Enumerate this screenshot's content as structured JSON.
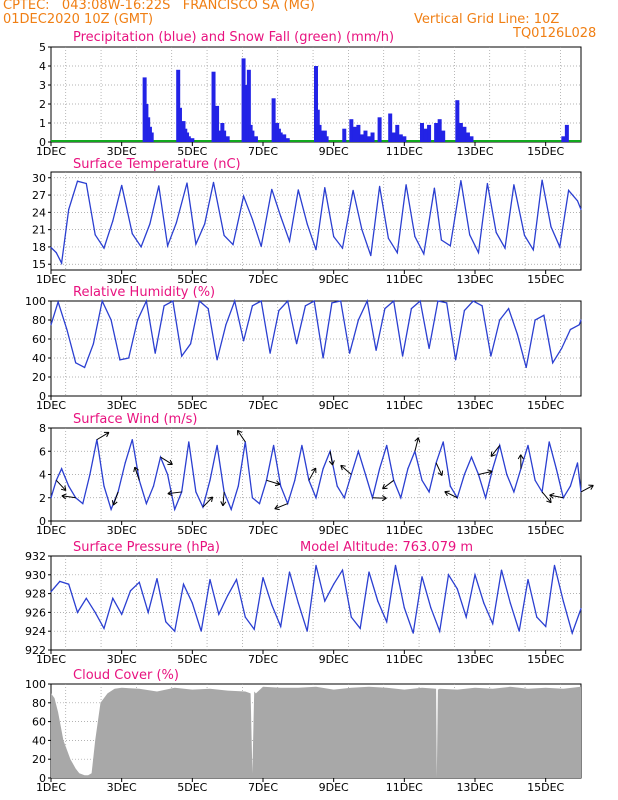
{
  "header": {
    "line1": "CPTEC:   043:08W-16:22S   FRANCISCO SA (MG)",
    "line2": "01DEC2020 10Z (GMT)",
    "grid_note": "Vertical Grid Line: 10Z",
    "code": "TQ0126L028"
  },
  "colors": {
    "header": "#f07f14",
    "title": "#e8127f",
    "line": "#2b3fd1",
    "precip": "#2323e6",
    "snow": "#12a81e",
    "cloud": "#a8a8a8",
    "grid": "#9a9a9a"
  },
  "x_ticks": [
    "1DEC",
    "3DEC",
    "5DEC",
    "7DEC",
    "9DEC",
    "11DEC",
    "13DEC",
    "15DEC"
  ],
  "x_tick_days": [
    1,
    3,
    5,
    7,
    9,
    11,
    13,
    15
  ],
  "chart_data": [
    {
      "type": "bar",
      "title": "Precipitation (blue) and Snow Fall (green) (mm/h)",
      "ylim": [
        0,
        5
      ],
      "yticks": [
        0,
        1,
        2,
        3,
        4,
        5
      ],
      "series": [
        {
          "name": "Precipitation",
          "x": [
            3.65,
            3.7,
            3.75,
            3.8,
            3.85,
            4.6,
            4.65,
            4.7,
            4.75,
            4.8,
            4.85,
            4.9,
            5.0,
            5.6,
            5.7,
            5.75,
            5.8,
            5.85,
            5.9,
            6.0,
            6.45,
            6.5,
            6.55,
            6.6,
            6.65,
            6.7,
            6.8,
            7.3,
            7.4,
            7.45,
            7.5,
            7.55,
            7.6,
            7.7,
            8.5,
            8.55,
            8.6,
            8.65,
            8.7,
            8.75,
            8.8,
            9.3,
            9.5,
            9.6,
            9.7,
            9.8,
            9.9,
            10.0,
            10.1,
            10.3,
            10.6,
            10.7,
            10.8,
            10.9,
            11.0,
            11.5,
            11.6,
            11.7,
            11.9,
            12.0,
            12.1,
            12.5,
            12.6,
            12.7,
            12.8,
            12.9,
            15.5,
            15.6
          ],
          "values": [
            3.4,
            2.0,
            1.3,
            0.8,
            0.5,
            3.8,
            1.8,
            0.9,
            1.1,
            0.7,
            0.5,
            0.3,
            0.2,
            3.7,
            1.9,
            0.6,
            0.5,
            1.0,
            0.6,
            0.3,
            4.4,
            3.0,
            1.4,
            3.8,
            0.9,
            0.6,
            0.3,
            2.3,
            1.0,
            0.7,
            0.5,
            0.3,
            0.4,
            0.2,
            4.0,
            1.7,
            0.9,
            0.6,
            0.4,
            0.6,
            0.3,
            0.7,
            1.2,
            0.8,
            0.9,
            0.4,
            0.6,
            0.3,
            0.5,
            1.3,
            1.5,
            0.5,
            0.9,
            0.4,
            0.3,
            1.0,
            0.7,
            0.9,
            1.0,
            1.2,
            0.6,
            2.2,
            1.0,
            0.8,
            0.5,
            0.3,
            0.3,
            0.9
          ]
        },
        {
          "name": "Snow Fall",
          "x": [],
          "values": []
        }
      ]
    },
    {
      "type": "line",
      "title": "Surface Temperature (nC)",
      "ylim": [
        14,
        31
      ],
      "yticks": [
        15,
        18,
        21,
        24,
        27,
        30
      ],
      "series": [
        {
          "name": "Surface Temperature",
          "x": [
            1.0,
            1.15,
            1.3,
            1.5,
            1.75,
            2.0,
            2.25,
            2.5,
            2.75,
            3.0,
            3.3,
            3.55,
            3.8,
            4.05,
            4.3,
            4.55,
            4.85,
            5.1,
            5.35,
            5.6,
            5.9,
            6.15,
            6.45,
            6.7,
            6.95,
            7.25,
            7.5,
            7.75,
            8.0,
            8.25,
            8.5,
            8.75,
            9.0,
            9.25,
            9.55,
            9.8,
            10.05,
            10.3,
            10.55,
            10.8,
            11.05,
            11.3,
            11.55,
            11.85,
            12.05,
            12.3,
            12.6,
            12.85,
            13.1,
            13.35,
            13.6,
            13.85,
            14.1,
            14.4,
            14.65,
            14.9,
            15.15,
            15.4,
            15.65,
            15.9,
            16.0
          ],
          "values": [
            17.9,
            17.0,
            15.2,
            24.5,
            29.4,
            29.0,
            20.1,
            17.8,
            22.5,
            28.7,
            20.3,
            18.0,
            22.0,
            28.6,
            18.2,
            22.2,
            29.1,
            18.5,
            22.0,
            29.2,
            20.0,
            18.4,
            26.8,
            22.8,
            18.1,
            28.0,
            23.3,
            19.0,
            27.9,
            22.0,
            17.5,
            28.3,
            19.8,
            17.8,
            27.8,
            21.0,
            16.5,
            28.5,
            19.5,
            17.0,
            28.8,
            19.8,
            16.8,
            28.2,
            19.2,
            18.2,
            29.5,
            20.1,
            17.0,
            29.0,
            20.5,
            17.8,
            28.8,
            20.0,
            17.5,
            29.6,
            21.5,
            18.0,
            27.8,
            26.0,
            24.5
          ]
        }
      ]
    },
    {
      "type": "line",
      "title": "Relative Humidity (%)",
      "ylim": [
        0,
        100
      ],
      "yticks": [
        0,
        20,
        40,
        60,
        80,
        100
      ],
      "series": [
        {
          "name": "Relative Humidity",
          "x": [
            1.0,
            1.2,
            1.45,
            1.7,
            1.95,
            2.2,
            2.45,
            2.7,
            2.95,
            3.2,
            3.45,
            3.7,
            3.95,
            4.2,
            4.45,
            4.7,
            4.95,
            5.2,
            5.45,
            5.7,
            5.95,
            6.2,
            6.45,
            6.7,
            6.95,
            7.2,
            7.45,
            7.7,
            7.95,
            8.2,
            8.45,
            8.7,
            8.95,
            9.2,
            9.45,
            9.7,
            9.95,
            10.2,
            10.45,
            10.7,
            10.95,
            11.2,
            11.45,
            11.7,
            11.95,
            12.2,
            12.45,
            12.7,
            12.95,
            13.2,
            13.45,
            13.7,
            13.95,
            14.2,
            14.45,
            14.7,
            14.95,
            15.2,
            15.45,
            15.7,
            15.95,
            16.0
          ],
          "values": [
            75,
            99,
            70,
            35,
            30,
            55,
            100,
            80,
            38,
            40,
            80,
            100,
            45,
            95,
            100,
            42,
            55,
            100,
            92,
            38,
            75,
            100,
            58,
            95,
            100,
            45,
            90,
            100,
            55,
            95,
            100,
            40,
            98,
            100,
            45,
            80,
            100,
            48,
            92,
            100,
            42,
            92,
            100,
            50,
            100,
            98,
            38,
            90,
            100,
            95,
            42,
            80,
            92,
            65,
            30,
            80,
            85,
            35,
            50,
            70,
            75,
            80
          ]
        }
      ]
    },
    {
      "type": "line",
      "title": "Surface Wind (m/s)",
      "ylim": [
        0,
        8
      ],
      "yticks": [
        0,
        2,
        4,
        6,
        8
      ],
      "series": [
        {
          "name": "Surface Wind",
          "x": [
            1.0,
            1.15,
            1.3,
            1.5,
            1.7,
            1.9,
            2.1,
            2.3,
            2.5,
            2.7,
            2.9,
            3.1,
            3.3,
            3.5,
            3.7,
            3.9,
            4.1,
            4.3,
            4.5,
            4.7,
            4.9,
            5.1,
            5.3,
            5.5,
            5.7,
            5.9,
            6.1,
            6.3,
            6.5,
            6.7,
            6.9,
            7.1,
            7.3,
            7.5,
            7.7,
            7.9,
            8.1,
            8.3,
            8.5,
            8.7,
            8.9,
            9.1,
            9.3,
            9.5,
            9.7,
            9.9,
            10.1,
            10.3,
            10.5,
            10.7,
            10.9,
            11.1,
            11.3,
            11.5,
            11.7,
            11.9,
            12.1,
            12.3,
            12.5,
            12.7,
            12.9,
            13.1,
            13.3,
            13.5,
            13.7,
            13.9,
            14.1,
            14.3,
            14.5,
            14.7,
            14.9,
            15.1,
            15.3,
            15.5,
            15.7,
            15.9,
            16.0
          ],
          "values": [
            2.0,
            3.5,
            4.5,
            3.0,
            2.0,
            1.5,
            4.0,
            7.0,
            3.0,
            1.0,
            2.5,
            5.0,
            7.0,
            3.5,
            1.5,
            3.0,
            5.5,
            4.0,
            1.0,
            2.5,
            6.8,
            2.5,
            1.2,
            3.5,
            6.5,
            2.5,
            1.0,
            3.0,
            6.8,
            2.0,
            1.5,
            3.5,
            6.5,
            3.0,
            1.5,
            3.5,
            6.5,
            3.5,
            2.0,
            4.5,
            6.0,
            3.0,
            2.0,
            4.0,
            6.0,
            4.0,
            2.0,
            4.5,
            6.5,
            3.5,
            2.0,
            4.5,
            6.0,
            3.5,
            2.5,
            5.0,
            6.8,
            3.0,
            2.0,
            4.0,
            5.5,
            4.0,
            2.0,
            4.5,
            6.5,
            4.0,
            2.5,
            4.5,
            6.5,
            3.5,
            2.5,
            6.8,
            4.5,
            2.0,
            3.0,
            5.0,
            2.5
          ]
        }
      ]
    },
    {
      "type": "line",
      "title": "Surface Pressure (hPa)",
      "annotation": "Model Altitude: 763.079  m",
      "ylim": [
        922,
        932
      ],
      "yticks": [
        922,
        924,
        926,
        928,
        930,
        932
      ],
      "series": [
        {
          "name": "Surface Pressure",
          "x": [
            1.0,
            1.25,
            1.5,
            1.75,
            2.0,
            2.25,
            2.5,
            2.75,
            3.0,
            3.25,
            3.5,
            3.75,
            4.0,
            4.25,
            4.5,
            4.75,
            5.0,
            5.25,
            5.5,
            5.75,
            6.0,
            6.25,
            6.5,
            6.75,
            7.0,
            7.25,
            7.5,
            7.75,
            8.0,
            8.25,
            8.5,
            8.75,
            9.0,
            9.25,
            9.5,
            9.75,
            10.0,
            10.25,
            10.5,
            10.75,
            11.0,
            11.25,
            11.5,
            11.75,
            12.0,
            12.25,
            12.5,
            12.75,
            13.0,
            13.25,
            13.5,
            13.75,
            14.0,
            14.25,
            14.5,
            14.75,
            15.0,
            15.25,
            15.5,
            15.75,
            16.0
          ],
          "values": [
            928.2,
            929.3,
            929.0,
            926.0,
            927.5,
            926.0,
            924.3,
            927.5,
            925.8,
            928.3,
            929.2,
            926.0,
            929.6,
            925.0,
            924.0,
            929.0,
            927.0,
            924.0,
            929.5,
            925.8,
            927.8,
            929.5,
            925.5,
            924.2,
            929.7,
            926.8,
            924.5,
            930.3,
            927.0,
            924.0,
            931.0,
            927.2,
            929.0,
            930.5,
            925.5,
            924.3,
            930.3,
            927.2,
            925.0,
            931.0,
            926.5,
            923.8,
            929.8,
            926.5,
            924.0,
            930.0,
            928.5,
            925.5,
            930.0,
            927.0,
            924.8,
            930.5,
            927.0,
            924.0,
            929.5,
            925.5,
            924.5,
            931.0,
            927.2,
            923.8,
            926.4
          ]
        }
      ]
    },
    {
      "type": "area",
      "title": "Cloud Cover (%)",
      "ylim": [
        0,
        100
      ],
      "yticks": [
        0,
        20,
        40,
        60,
        80,
        100
      ],
      "series": [
        {
          "name": "Cloud Cover",
          "x": [
            1.0,
            1.1,
            1.2,
            1.35,
            1.45,
            1.55,
            1.7,
            1.8,
            1.95,
            2.05,
            2.15,
            2.25,
            2.4,
            2.6,
            2.8,
            3.0,
            3.5,
            4.0,
            4.5,
            5.0,
            5.5,
            6.0,
            6.5,
            6.65,
            6.7,
            6.75,
            6.8,
            7.0,
            7.5,
            8.0,
            8.5,
            9.0,
            9.5,
            10.0,
            10.5,
            11.0,
            11.5,
            11.9,
            11.92,
            11.95,
            12.0,
            12.5,
            13.0,
            13.5,
            14.0,
            14.5,
            15.0,
            15.5,
            16.0
          ],
          "values": [
            90,
            85,
            70,
            40,
            30,
            20,
            10,
            5,
            3,
            3,
            5,
            40,
            80,
            90,
            95,
            96,
            95,
            92,
            96,
            94,
            95,
            93,
            92,
            90,
            5,
            92,
            90,
            97,
            96,
            96,
            97,
            94,
            96,
            97,
            96,
            94,
            96,
            95,
            0,
            94,
            95,
            94,
            96,
            95,
            97,
            95,
            96,
            95,
            97
          ]
        }
      ]
    }
  ]
}
